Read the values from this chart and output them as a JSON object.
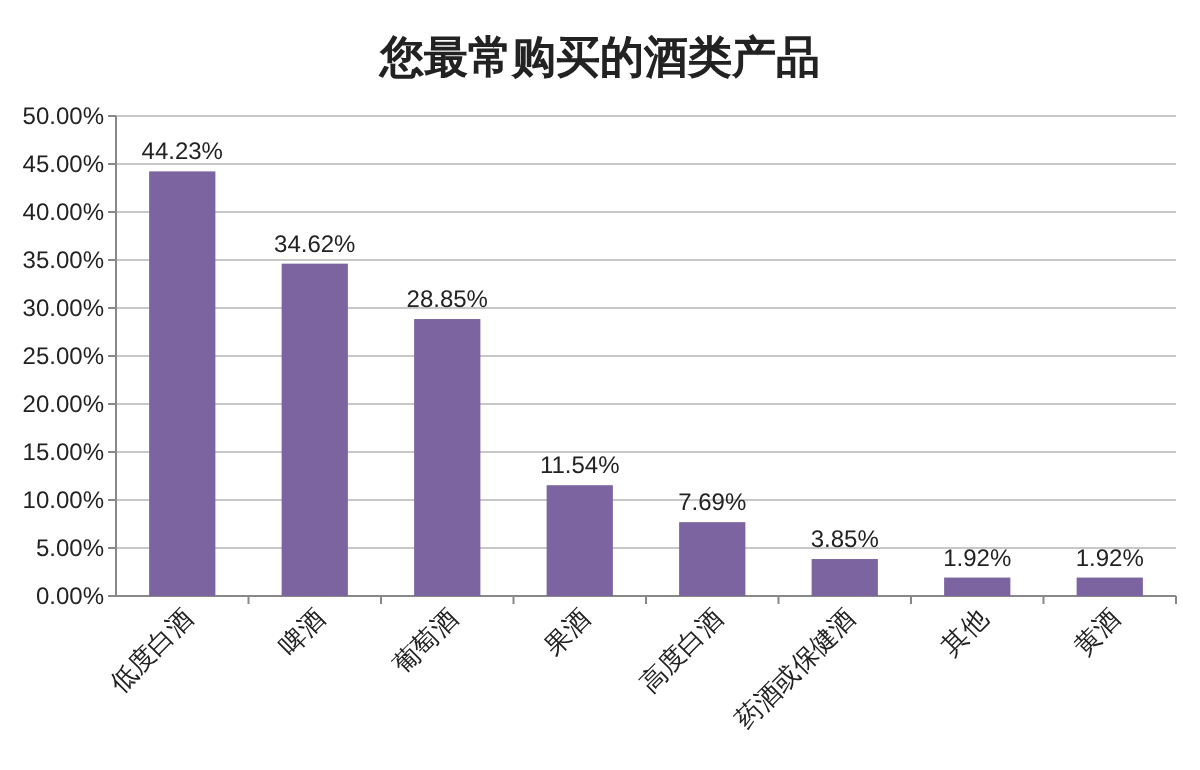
{
  "chart_data": {
    "type": "bar",
    "title": "您最常购买的酒类产品",
    "categories": [
      "低度白酒",
      "啤酒",
      "葡萄酒",
      "果酒",
      "高度白酒",
      "药酒或保健酒",
      "其他",
      "黄酒"
    ],
    "values": [
      44.23,
      34.62,
      28.85,
      11.54,
      7.69,
      3.85,
      1.92,
      1.92
    ],
    "color": "#7b64a0",
    "value_labels": [
      "44.23%",
      "34.62%",
      "28.85%",
      "11.54%",
      "7.69%",
      "3.85%",
      "1.92%",
      "1.92%"
    ],
    "ylim": [
      0,
      50
    ],
    "yticks": [
      {
        "value": 0,
        "label": "0.00%"
      },
      {
        "value": 5,
        "label": "5.00%"
      },
      {
        "value": 10,
        "label": "10.00%"
      },
      {
        "value": 15,
        "label": "15.00%"
      },
      {
        "value": 20,
        "label": "20.00%"
      },
      {
        "value": 25,
        "label": "25.00%"
      },
      {
        "value": 30,
        "label": "30.00%"
      },
      {
        "value": 35,
        "label": "35.00%"
      },
      {
        "value": 40,
        "label": "40.00%"
      },
      {
        "value": 45,
        "label": "45.00%"
      },
      {
        "value": 50,
        "label": "50.00%"
      }
    ],
    "grid": "y"
  }
}
